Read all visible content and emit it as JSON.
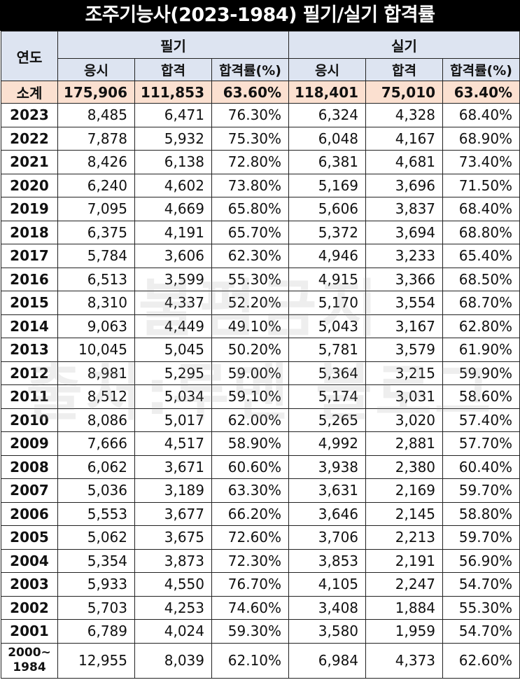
{
  "title": "조주기능사(2023-1984) 필기/실기 합격률",
  "headers": {
    "year": "연도",
    "written": "필기",
    "practical": "실기",
    "applied": "응시",
    "passed": "합격",
    "rate": "합격률(%)"
  },
  "subtotal": {
    "label": "소계",
    "written": [
      "175,906",
      "111,853",
      "63.60%"
    ],
    "practical": [
      "118,401",
      "75,010",
      "63.40%"
    ]
  },
  "rows": [
    {
      "year": "2023",
      "w": [
        "8,485",
        "6,471",
        "76.30%"
      ],
      "p": [
        "6,324",
        "4,328",
        "68.40%"
      ]
    },
    {
      "year": "2022",
      "w": [
        "7,878",
        "5,932",
        "75.30%"
      ],
      "p": [
        "6,048",
        "4,167",
        "68.90%"
      ]
    },
    {
      "year": "2021",
      "w": [
        "8,426",
        "6,138",
        "72.80%"
      ],
      "p": [
        "6,381",
        "4,681",
        "73.40%"
      ]
    },
    {
      "year": "2020",
      "w": [
        "6,240",
        "4,602",
        "73.80%"
      ],
      "p": [
        "5,169",
        "3,696",
        "71.50%"
      ]
    },
    {
      "year": "2019",
      "w": [
        "7,095",
        "4,669",
        "65.80%"
      ],
      "p": [
        "5,606",
        "3,837",
        "68.40%"
      ]
    },
    {
      "year": "2018",
      "w": [
        "6,375",
        "4,191",
        "65.70%"
      ],
      "p": [
        "5,372",
        "3,694",
        "68.80%"
      ]
    },
    {
      "year": "2017",
      "w": [
        "5,784",
        "3,606",
        "62.30%"
      ],
      "p": [
        "4,946",
        "3,233",
        "65.40%"
      ]
    },
    {
      "year": "2016",
      "w": [
        "6,513",
        "3,599",
        "55.30%"
      ],
      "p": [
        "4,915",
        "3,366",
        "68.50%"
      ]
    },
    {
      "year": "2015",
      "w": [
        "8,310",
        "4,337",
        "52.20%"
      ],
      "p": [
        "5,170",
        "3,554",
        "68.70%"
      ]
    },
    {
      "year": "2014",
      "w": [
        "9,063",
        "4,449",
        "49.10%"
      ],
      "p": [
        "5,043",
        "3,167",
        "62.80%"
      ]
    },
    {
      "year": "2013",
      "w": [
        "10,045",
        "5,045",
        "50.20%"
      ],
      "p": [
        "5,781",
        "3,579",
        "61.90%"
      ]
    },
    {
      "year": "2012",
      "w": [
        "8,981",
        "5,295",
        "59.00%"
      ],
      "p": [
        "5,364",
        "3,215",
        "59.90%"
      ]
    },
    {
      "year": "2011",
      "w": [
        "8,512",
        "5,034",
        "59.10%"
      ],
      "p": [
        "5,174",
        "3,031",
        "58.60%"
      ]
    },
    {
      "year": "2010",
      "w": [
        "8,086",
        "5,017",
        "62.00%"
      ],
      "p": [
        "5,265",
        "3,020",
        "57.40%"
      ]
    },
    {
      "year": "2009",
      "w": [
        "7,666",
        "4,517",
        "58.90%"
      ],
      "p": [
        "4,992",
        "2,881",
        "57.70%"
      ]
    },
    {
      "year": "2008",
      "w": [
        "6,062",
        "3,671",
        "60.60%"
      ],
      "p": [
        "3,938",
        "2,380",
        "60.40%"
      ]
    },
    {
      "year": "2007",
      "w": [
        "5,036",
        "3,189",
        "63.30%"
      ],
      "p": [
        "3,631",
        "2,169",
        "59.70%"
      ]
    },
    {
      "year": "2006",
      "w": [
        "5,553",
        "3,677",
        "66.20%"
      ],
      "p": [
        "3,646",
        "2,145",
        "58.80%"
      ]
    },
    {
      "year": "2005",
      "w": [
        "5,062",
        "3,675",
        "72.60%"
      ],
      "p": [
        "3,706",
        "2,213",
        "59.70%"
      ]
    },
    {
      "year": "2004",
      "w": [
        "5,354",
        "3,873",
        "72.30%"
      ],
      "p": [
        "3,853",
        "2,191",
        "56.90%"
      ]
    },
    {
      "year": "2003",
      "w": [
        "5,933",
        "4,550",
        "76.70%"
      ],
      "p": [
        "4,105",
        "2,247",
        "54.70%"
      ]
    },
    {
      "year": "2002",
      "w": [
        "5,703",
        "4,253",
        "74.60%"
      ],
      "p": [
        "3,408",
        "1,884",
        "55.30%"
      ]
    },
    {
      "year": "2001",
      "w": [
        "6,789",
        "4,024",
        "59.30%"
      ],
      "p": [
        "3,580",
        "1,959",
        "54.70%"
      ]
    }
  ],
  "last_row": {
    "year_line1": "2000~",
    "year_line2": "1984",
    "w": [
      "12,955",
      "8,039",
      "62.10%"
    ],
    "p": [
      "6,984",
      "4,373",
      "62.60%"
    ]
  },
  "watermark": {
    "line1": "불펌금지",
    "line2": "출처:루멘 블로그"
  },
  "colors": {
    "title_bg": "#000000",
    "header_bg": "#dde4f1",
    "subtotal_bg": "#fbe0d0"
  }
}
